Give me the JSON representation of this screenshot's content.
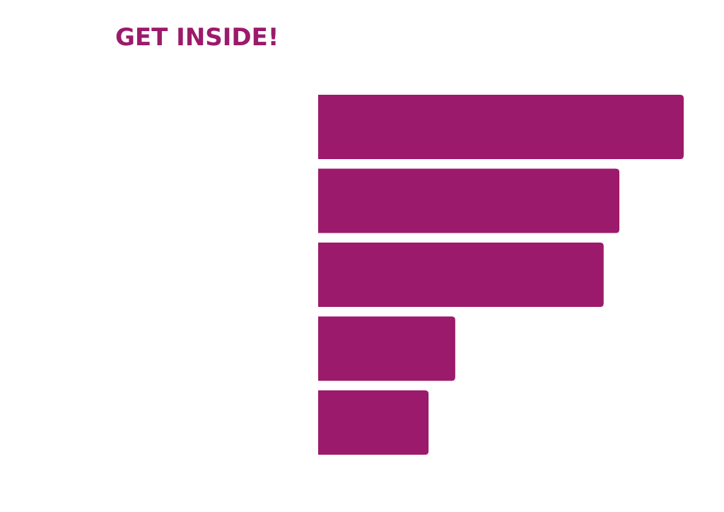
{
  "chart_data": {
    "type": "barh",
    "title": "GET INSIDE!",
    "categories": [
      null,
      null,
      null,
      null,
      null
    ],
    "values": [
      100,
      82.4,
      78.1,
      37.5,
      30.2
    ],
    "color": "#9c1a6b",
    "grid": false
  }
}
